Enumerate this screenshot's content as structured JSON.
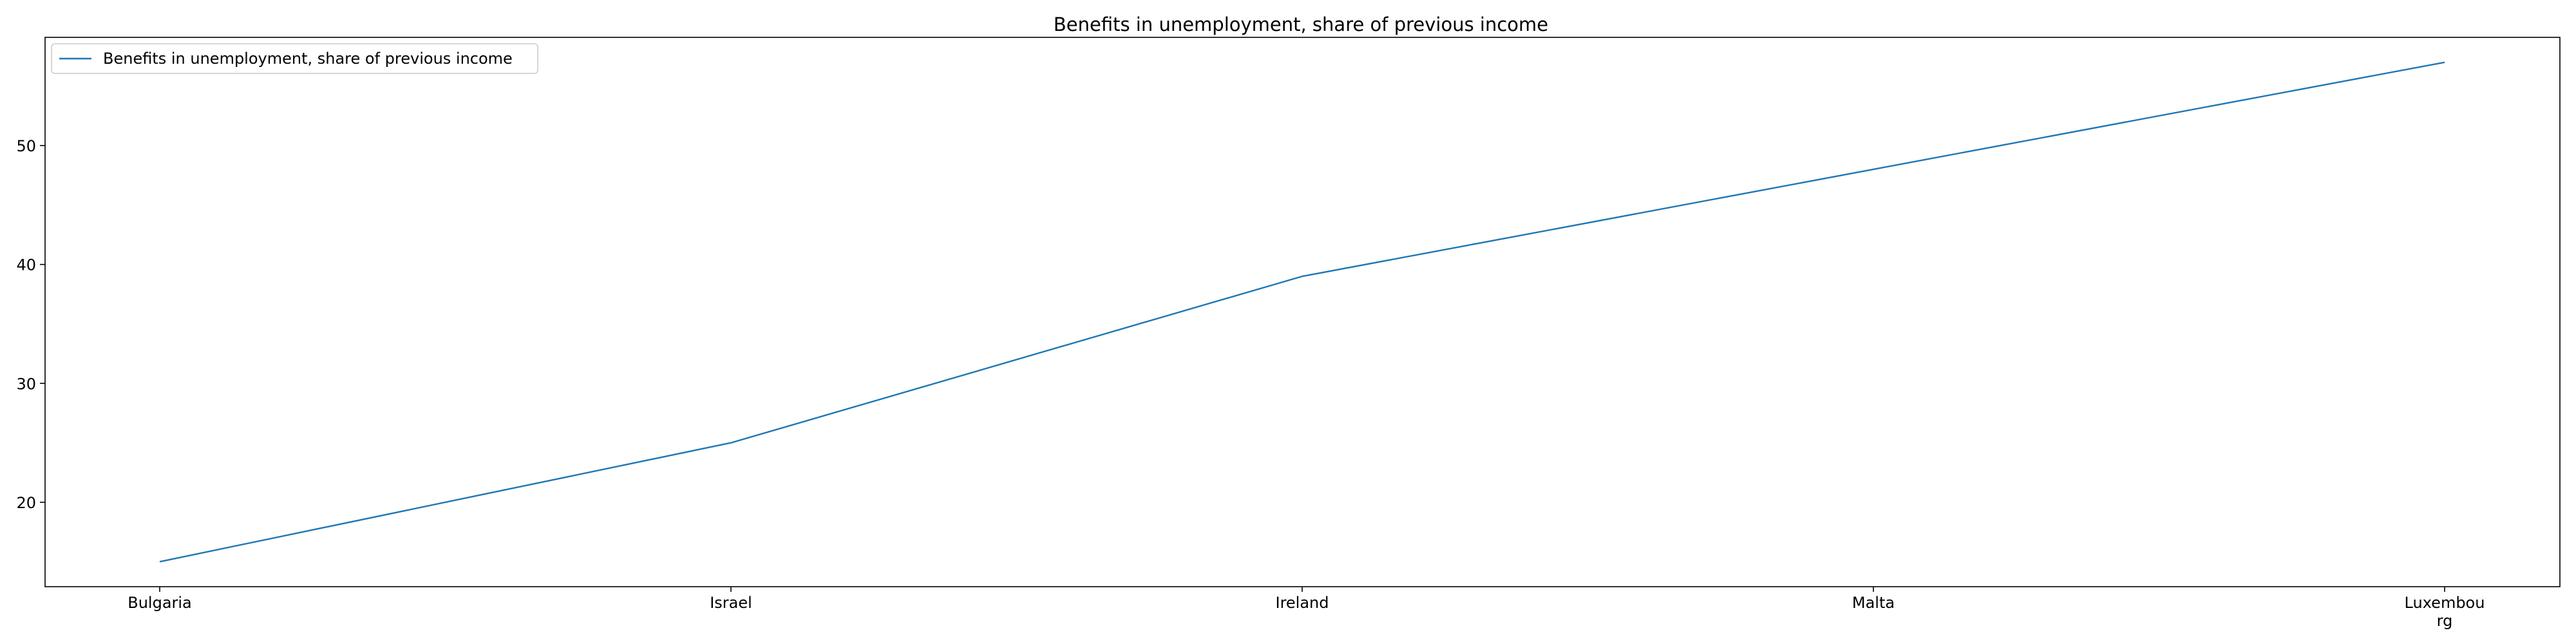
{
  "chart_data": {
    "type": "line",
    "title": "Benefits in unemployment, share of previous income",
    "xlabel": "",
    "ylabel": "",
    "categories": [
      "Bulgaria",
      "Israel",
      "Ireland",
      "Malta",
      "Luxembourg"
    ],
    "category_labels": [
      [
        "Bulgaria"
      ],
      [
        "Israel"
      ],
      [
        "Ireland"
      ],
      [
        "Malta"
      ],
      [
        "Luxembou",
        "rg"
      ]
    ],
    "series": [
      {
        "name": "Benefits in unemployment, share of previous income",
        "values": [
          15,
          25,
          39,
          48,
          57
        ],
        "color": "#1f77b4"
      }
    ],
    "ylim": [
      12.9,
      59.1
    ],
    "yticks": [
      20,
      30,
      40,
      50
    ],
    "grid": false,
    "legend_position": "top-left"
  }
}
